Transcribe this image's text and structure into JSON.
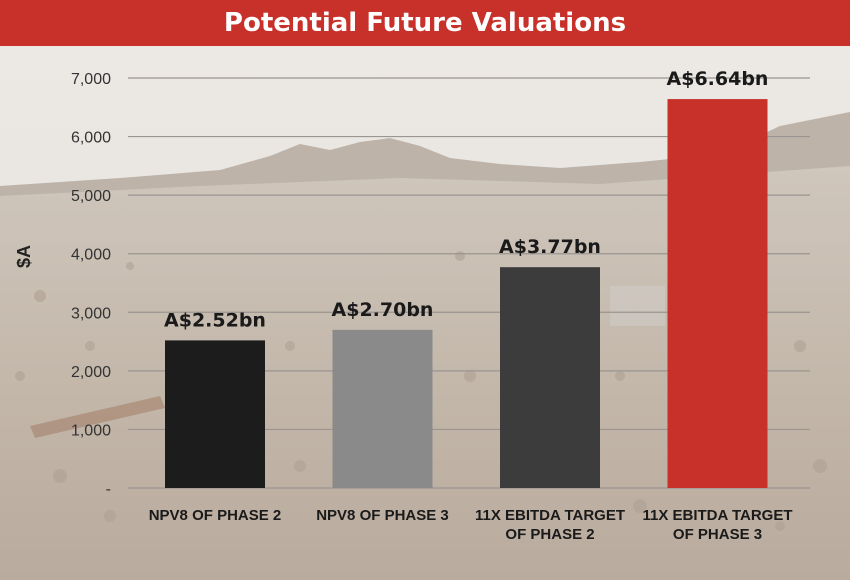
{
  "title": "Potential Future Valuations",
  "chart_data": {
    "type": "bar",
    "categories": [
      [
        "NPV8 OF PHASE 2"
      ],
      [
        "NPV8 OF PHASE 3"
      ],
      [
        "11X EBITDA TARGET",
        "OF PHASE 2"
      ],
      [
        "11X EBITDA TARGET",
        "OF PHASE 3"
      ]
    ],
    "values": [
      2520,
      2700,
      3770,
      6640
    ],
    "data_labels": [
      "A$2.52bn",
      "A$2.70bn",
      "A$3.77bn",
      "A$6.64bn"
    ],
    "bar_colors": [
      "#1c1c1c",
      "#8a8a8a",
      "#3c3c3c",
      "#c8302a"
    ],
    "ylabel": "$A",
    "yticks": [
      "-",
      "1,000",
      "2,000",
      "3,000",
      "4,000",
      "5,000",
      "6,000",
      "7,000"
    ],
    "ylim": [
      0,
      7000
    ],
    "grid": true
  },
  "colors": {
    "title_bar": "#c8302a",
    "accent_bar": "#c8302a",
    "gridline": "#9a9591"
  }
}
